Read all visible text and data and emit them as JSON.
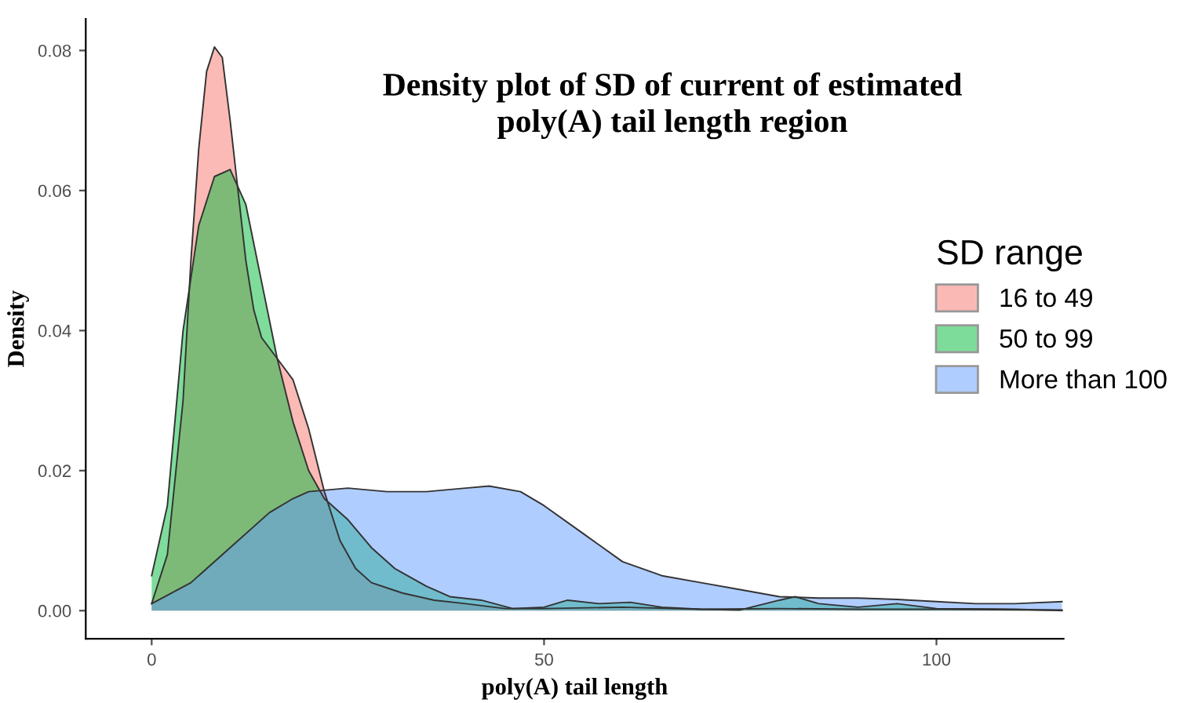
{
  "chart_data": {
    "type": "area",
    "title": "Density plot of SD of current of estimated\npoly(A) tail length region",
    "xlabel": "poly(A) tail length",
    "ylabel": "Density",
    "legend_title": "SD range",
    "series": [
      {
        "name": "16 to 49",
        "color": "#f8766d",
        "x": [
          0,
          2,
          4,
          5,
          6,
          7,
          8,
          9,
          10,
          11,
          12,
          13,
          14,
          16,
          18,
          20,
          22,
          24,
          26,
          28,
          32,
          36,
          40,
          45,
          50,
          60,
          70,
          80,
          90,
          100,
          116
        ],
        "values": [
          0.001,
          0.008,
          0.03,
          0.05,
          0.066,
          0.077,
          0.0805,
          0.079,
          0.07,
          0.06,
          0.05,
          0.043,
          0.039,
          0.036,
          0.033,
          0.026,
          0.017,
          0.01,
          0.006,
          0.004,
          0.0025,
          0.0015,
          0.001,
          0.0003,
          0.0003,
          0.0005,
          0.0002,
          0.0003,
          0.0002,
          0.0002,
          0.0001
        ]
      },
      {
        "name": "50 to 99",
        "color": "#00ba38",
        "x": [
          0,
          2,
          4,
          6,
          8,
          10,
          12,
          14,
          16,
          18,
          20,
          22,
          25,
          28,
          31,
          35,
          38,
          42,
          46,
          50,
          53,
          57,
          61,
          65,
          70,
          75,
          80,
          82,
          85,
          90,
          95,
          100,
          110,
          116
        ],
        "values": [
          0.005,
          0.015,
          0.04,
          0.055,
          0.062,
          0.063,
          0.058,
          0.047,
          0.036,
          0.027,
          0.02,
          0.016,
          0.013,
          0.009,
          0.006,
          0.0035,
          0.002,
          0.0015,
          0.0003,
          0.0005,
          0.0015,
          0.001,
          0.0012,
          0.0005,
          0.0002,
          0.0001,
          0.0015,
          0.002,
          0.001,
          0.0005,
          0.001,
          0.0003,
          0.0002,
          0.0
        ]
      },
      {
        "name": "More than 100",
        "color": "#619cff",
        "x": [
          0,
          5,
          10,
          15,
          18,
          20,
          25,
          30,
          35,
          40,
          43,
          47,
          50,
          55,
          60,
          65,
          70,
          75,
          80,
          85,
          90,
          95,
          100,
          105,
          110,
          116
        ],
        "values": [
          0.001,
          0.004,
          0.009,
          0.014,
          0.016,
          0.017,
          0.0175,
          0.017,
          0.017,
          0.0175,
          0.0178,
          0.017,
          0.015,
          0.011,
          0.007,
          0.005,
          0.004,
          0.003,
          0.002,
          0.0018,
          0.0018,
          0.0016,
          0.0013,
          0.001,
          0.001,
          0.0013
        ]
      }
    ],
    "xlim": [
      -8.4,
      116.2
    ],
    "ylim": [
      -0.004,
      0.0845
    ],
    "xticks": [
      0,
      50,
      100
    ],
    "yticks": [
      {
        "value": 0,
        "label": "0.00"
      },
      {
        "value": 0.02,
        "label": "0.02"
      },
      {
        "value": 0.04,
        "label": "0.04"
      },
      {
        "value": 0.06,
        "label": "0.06"
      },
      {
        "value": 0.08,
        "label": "0.08"
      }
    ],
    "grid": false,
    "legend": "right"
  }
}
